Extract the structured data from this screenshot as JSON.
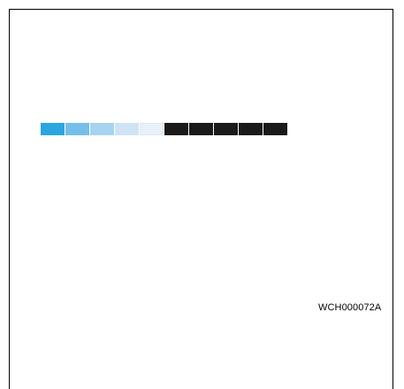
{
  "figure": {
    "code": "WCH000072A"
  },
  "swatches": [
    {
      "color": "#2aa6e0"
    },
    {
      "color": "#74bfe9"
    },
    {
      "color": "#a6d3f0"
    },
    {
      "color": "#cfe3f4"
    },
    {
      "color": "#e8f1fa"
    },
    {
      "color": "#1a1a1a"
    },
    {
      "color": "#1a1a1a"
    },
    {
      "color": "#1a1a1a"
    },
    {
      "color": "#1a1a1a"
    },
    {
      "color": "#1a1a1a"
    }
  ]
}
